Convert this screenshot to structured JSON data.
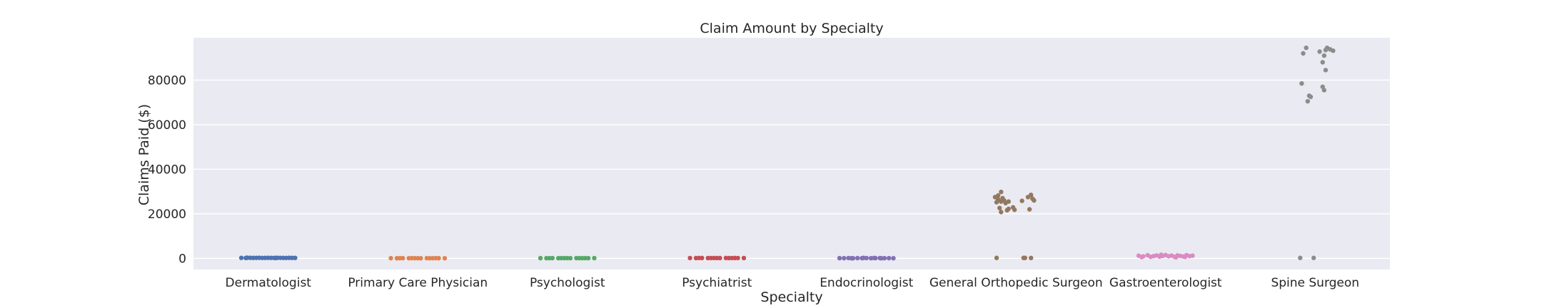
{
  "chart_data": {
    "type": "scatter",
    "style": "strip plot (categorical jitter)",
    "title": "Claim Amount by Specialty",
    "xlabel": "Specialty",
    "ylabel": "Claims Paid ($)",
    "ylim": [
      -5000,
      99000
    ],
    "yticks": [
      0,
      20000,
      40000,
      60000,
      80000
    ],
    "grid": true,
    "background": "#eaeaf2",
    "categories": [
      "Dermatologist",
      "Primary Care Physician",
      "Psychologist",
      "Psychiatrist",
      "Endocrinologist",
      "General Orthopedic Surgeon",
      "Gastroenterologist",
      "Spine Surgeon"
    ],
    "series": [
      {
        "category": "Dermatologist",
        "color": "#4c72b0",
        "points": [
          [
            -0.18,
            220
          ],
          [
            -0.15,
            180
          ],
          [
            -0.12,
            250
          ],
          [
            -0.1,
            200
          ],
          [
            -0.08,
            230
          ],
          [
            -0.06,
            260
          ],
          [
            -0.04,
            190
          ],
          [
            -0.02,
            210
          ],
          [
            0,
            240
          ],
          [
            0.02,
            220
          ],
          [
            0.04,
            200
          ],
          [
            0.06,
            250
          ],
          [
            0.08,
            230
          ],
          [
            0.1,
            210
          ],
          [
            0.12,
            190
          ],
          [
            0.14,
            240
          ],
          [
            0.16,
            220
          ],
          [
            0.18,
            200
          ],
          [
            -0.14,
            300
          ],
          [
            0.05,
            150
          ]
        ]
      },
      {
        "category": "Primary Care Physician",
        "color": "#dd8452",
        "points": [
          [
            -0.18,
            80
          ],
          [
            -0.14,
            60
          ],
          [
            -0.1,
            90
          ],
          [
            -0.06,
            70
          ],
          [
            -0.02,
            80
          ],
          [
            0.02,
            60
          ],
          [
            0.06,
            90
          ],
          [
            0.1,
            70
          ],
          [
            0.14,
            80
          ],
          [
            0.18,
            60
          ],
          [
            -0.12,
            100
          ],
          [
            0.0,
            50
          ],
          [
            0.12,
            95
          ],
          [
            -0.04,
            85
          ],
          [
            0.08,
            55
          ]
        ]
      },
      {
        "category": "Psychologist",
        "color": "#55a868",
        "points": [
          [
            -0.18,
            100
          ],
          [
            -0.14,
            90
          ],
          [
            -0.1,
            110
          ],
          [
            -0.06,
            95
          ],
          [
            -0.02,
            105
          ],
          [
            0.02,
            90
          ],
          [
            0.06,
            110
          ],
          [
            0.1,
            100
          ],
          [
            0.14,
            95
          ],
          [
            0.18,
            105
          ],
          [
            -0.12,
            85
          ],
          [
            0.0,
            115
          ],
          [
            0.12,
            92
          ],
          [
            -0.04,
            108
          ],
          [
            0.08,
            98
          ]
        ]
      },
      {
        "category": "Psychiatrist",
        "color": "#c44e52",
        "points": [
          [
            -0.18,
            150
          ],
          [
            -0.14,
            130
          ],
          [
            -0.1,
            170
          ],
          [
            -0.06,
            140
          ],
          [
            -0.02,
            160
          ],
          [
            0.02,
            135
          ],
          [
            0.06,
            165
          ],
          [
            0.1,
            145
          ],
          [
            0.14,
            155
          ],
          [
            0.18,
            140
          ],
          [
            -0.12,
            175
          ],
          [
            0.0,
            125
          ],
          [
            0.12,
            160
          ],
          [
            -0.04,
            150
          ],
          [
            0.08,
            138
          ]
        ]
      },
      {
        "category": "Endocrinologist",
        "color": "#8172b3",
        "points": [
          [
            -0.18,
            100
          ],
          [
            -0.15,
            80
          ],
          [
            -0.12,
            150
          ],
          [
            -0.09,
            60
          ],
          [
            -0.06,
            120
          ],
          [
            -0.03,
            90
          ],
          [
            0,
            140
          ],
          [
            0.03,
            70
          ],
          [
            0.06,
            110
          ],
          [
            0.09,
            130
          ],
          [
            0.12,
            85
          ],
          [
            0.15,
            100
          ],
          [
            0.18,
            60
          ],
          [
            -0.1,
            40
          ],
          [
            0.05,
            160
          ],
          [
            -0.02,
            200
          ],
          [
            0.1,
            30
          ]
        ]
      },
      {
        "category": "General Orthopedic Surgeon",
        "color": "#937860",
        "points": [
          [
            -0.1,
            29800
          ],
          [
            -0.14,
            27500
          ],
          [
            -0.12,
            26500
          ],
          [
            -0.08,
            26000
          ],
          [
            -0.1,
            25500
          ],
          [
            -0.13,
            25200
          ],
          [
            -0.07,
            24800
          ],
          [
            -0.09,
            27000
          ],
          [
            -0.11,
            22600
          ],
          [
            -0.06,
            21600
          ],
          [
            -0.05,
            22200
          ],
          [
            -0.02,
            22900
          ],
          [
            -0.01,
            21800
          ],
          [
            0.08,
            27500
          ],
          [
            0.1,
            28500
          ],
          [
            0.12,
            26000
          ],
          [
            0.11,
            26800
          ],
          [
            0.04,
            25800
          ],
          [
            0.09,
            22000
          ],
          [
            -0.1,
            20800
          ],
          [
            -0.05,
            25500
          ],
          [
            -0.12,
            28200
          ],
          [
            -0.13,
            200
          ],
          [
            0.05,
            200
          ],
          [
            0.06,
            200
          ],
          [
            0.1,
            180
          ]
        ]
      },
      {
        "category": "Gastroenterologist",
        "color": "#da8bc3",
        "points": [
          [
            -0.18,
            1200
          ],
          [
            -0.15,
            900
          ],
          [
            -0.12,
            1400
          ],
          [
            -0.1,
            700
          ],
          [
            -0.08,
            1000
          ],
          [
            -0.06,
            1300
          ],
          [
            -0.04,
            800
          ],
          [
            -0.02,
            1100
          ],
          [
            0,
            1500
          ],
          [
            0.02,
            950
          ],
          [
            0.04,
            1250
          ],
          [
            0.06,
            700
          ],
          [
            0.08,
            1350
          ],
          [
            0.1,
            1050
          ],
          [
            0.12,
            850
          ],
          [
            0.14,
            1450
          ],
          [
            0.16,
            1000
          ],
          [
            0.18,
            1200
          ],
          [
            -0.16,
            600
          ],
          [
            0.07,
            500
          ],
          [
            -0.03,
            1600
          ],
          [
            0.13,
            650
          ]
        ]
      },
      {
        "category": "Spine Surgeon",
        "color": "#8c8c8c",
        "points": [
          [
            -0.06,
            94500
          ],
          [
            -0.08,
            92000
          ],
          [
            0.03,
            92800
          ],
          [
            0.06,
            91000
          ],
          [
            0.08,
            94500
          ],
          [
            0.1,
            93800
          ],
          [
            0.12,
            93200
          ],
          [
            0.05,
            88000
          ],
          [
            0.07,
            84500
          ],
          [
            -0.09,
            78500
          ],
          [
            0.05,
            77000
          ],
          [
            0.06,
            75500
          ],
          [
            -0.04,
            73000
          ],
          [
            -0.05,
            70500
          ],
          [
            -0.03,
            72500
          ],
          [
            0.07,
            93500
          ],
          [
            -0.1,
            200
          ],
          [
            -0.01,
            200
          ]
        ]
      }
    ]
  }
}
